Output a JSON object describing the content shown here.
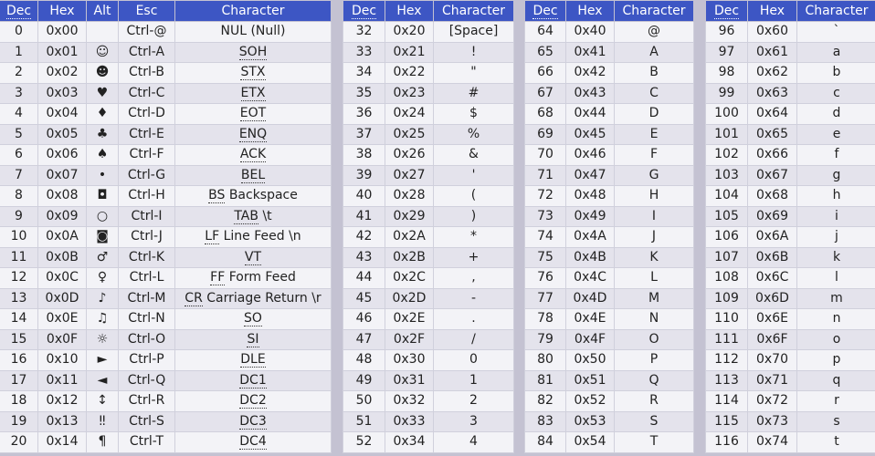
{
  "headers": {
    "control": [
      "Dec",
      "Hex",
      "Alt",
      "Esc",
      "Character"
    ],
    "printable": [
      "Dec",
      "Hex",
      "Character"
    ]
  },
  "control_rows": [
    {
      "dec": "0",
      "hex": "0x00",
      "alt": "",
      "esc": "Ctrl-@",
      "abbr": "",
      "rest": "NUL (Null)"
    },
    {
      "dec": "1",
      "hex": "0x01",
      "alt": "☺",
      "esc": "Ctrl-A",
      "abbr": "SOH",
      "rest": ""
    },
    {
      "dec": "2",
      "hex": "0x02",
      "alt": "☻",
      "esc": "Ctrl-B",
      "abbr": "STX",
      "rest": ""
    },
    {
      "dec": "3",
      "hex": "0x03",
      "alt": "♥",
      "esc": "Ctrl-C",
      "abbr": "ETX",
      "rest": ""
    },
    {
      "dec": "4",
      "hex": "0x04",
      "alt": "♦",
      "esc": "Ctrl-D",
      "abbr": "EOT",
      "rest": ""
    },
    {
      "dec": "5",
      "hex": "0x05",
      "alt": "♣",
      "esc": "Ctrl-E",
      "abbr": "ENQ",
      "rest": ""
    },
    {
      "dec": "6",
      "hex": "0x06",
      "alt": "♠",
      "esc": "Ctrl-F",
      "abbr": "ACK",
      "rest": ""
    },
    {
      "dec": "7",
      "hex": "0x07",
      "alt": "•",
      "esc": "Ctrl-G",
      "abbr": "BEL",
      "rest": ""
    },
    {
      "dec": "8",
      "hex": "0x08",
      "alt": "◘",
      "esc": "Ctrl-H",
      "abbr": "BS",
      "rest": "Backspace"
    },
    {
      "dec": "9",
      "hex": "0x09",
      "alt": "○",
      "esc": "Ctrl-I",
      "abbr": "TAB",
      "rest": "\\t"
    },
    {
      "dec": "10",
      "hex": "0x0A",
      "alt": "◙",
      "esc": "Ctrl-J",
      "abbr": "LF",
      "rest": "Line Feed \\n"
    },
    {
      "dec": "11",
      "hex": "0x0B",
      "alt": "♂",
      "esc": "Ctrl-K",
      "abbr": "VT",
      "rest": ""
    },
    {
      "dec": "12",
      "hex": "0x0C",
      "alt": "♀",
      "esc": "Ctrl-L",
      "abbr": "FF",
      "rest": "Form Feed"
    },
    {
      "dec": "13",
      "hex": "0x0D",
      "alt": "♪",
      "esc": "Ctrl-M",
      "abbr": "CR",
      "rest": "Carriage Return \\r"
    },
    {
      "dec": "14",
      "hex": "0x0E",
      "alt": "♫",
      "esc": "Ctrl-N",
      "abbr": "SO",
      "rest": ""
    },
    {
      "dec": "15",
      "hex": "0x0F",
      "alt": "☼",
      "esc": "Ctrl-O",
      "abbr": "SI",
      "rest": ""
    },
    {
      "dec": "16",
      "hex": "0x10",
      "alt": "►",
      "esc": "Ctrl-P",
      "abbr": "DLE",
      "rest": ""
    },
    {
      "dec": "17",
      "hex": "0x11",
      "alt": "◄",
      "esc": "Ctrl-Q",
      "abbr": "DC1",
      "rest": ""
    },
    {
      "dec": "18",
      "hex": "0x12",
      "alt": "↕",
      "esc": "Ctrl-R",
      "abbr": "DC2",
      "rest": ""
    },
    {
      "dec": "19",
      "hex": "0x13",
      "alt": "‼",
      "esc": "Ctrl-S",
      "abbr": "DC3",
      "rest": ""
    },
    {
      "dec": "20",
      "hex": "0x14",
      "alt": "¶",
      "esc": "Ctrl-T",
      "abbr": "DC4",
      "rest": ""
    }
  ],
  "printable_columns": [
    [
      {
        "dec": "32",
        "hex": "0x20",
        "char": "[Space]"
      },
      {
        "dec": "33",
        "hex": "0x21",
        "char": "!"
      },
      {
        "dec": "34",
        "hex": "0x22",
        "char": "\""
      },
      {
        "dec": "35",
        "hex": "0x23",
        "char": "#"
      },
      {
        "dec": "36",
        "hex": "0x24",
        "char": "$"
      },
      {
        "dec": "37",
        "hex": "0x25",
        "char": "%"
      },
      {
        "dec": "38",
        "hex": "0x26",
        "char": "&"
      },
      {
        "dec": "39",
        "hex": "0x27",
        "char": "'"
      },
      {
        "dec": "40",
        "hex": "0x28",
        "char": "("
      },
      {
        "dec": "41",
        "hex": "0x29",
        "char": ")"
      },
      {
        "dec": "42",
        "hex": "0x2A",
        "char": "*"
      },
      {
        "dec": "43",
        "hex": "0x2B",
        "char": "+"
      },
      {
        "dec": "44",
        "hex": "0x2C",
        "char": ","
      },
      {
        "dec": "45",
        "hex": "0x2D",
        "char": "-"
      },
      {
        "dec": "46",
        "hex": "0x2E",
        "char": "."
      },
      {
        "dec": "47",
        "hex": "0x2F",
        "char": "/"
      },
      {
        "dec": "48",
        "hex": "0x30",
        "char": "0"
      },
      {
        "dec": "49",
        "hex": "0x31",
        "char": "1"
      },
      {
        "dec": "50",
        "hex": "0x32",
        "char": "2"
      },
      {
        "dec": "51",
        "hex": "0x33",
        "char": "3"
      },
      {
        "dec": "52",
        "hex": "0x34",
        "char": "4"
      }
    ],
    [
      {
        "dec": "64",
        "hex": "0x40",
        "char": "@"
      },
      {
        "dec": "65",
        "hex": "0x41",
        "char": "A"
      },
      {
        "dec": "66",
        "hex": "0x42",
        "char": "B"
      },
      {
        "dec": "67",
        "hex": "0x43",
        "char": "C"
      },
      {
        "dec": "68",
        "hex": "0x44",
        "char": "D"
      },
      {
        "dec": "69",
        "hex": "0x45",
        "char": "E"
      },
      {
        "dec": "70",
        "hex": "0x46",
        "char": "F"
      },
      {
        "dec": "71",
        "hex": "0x47",
        "char": "G"
      },
      {
        "dec": "72",
        "hex": "0x48",
        "char": "H"
      },
      {
        "dec": "73",
        "hex": "0x49",
        "char": "I"
      },
      {
        "dec": "74",
        "hex": "0x4A",
        "char": "J"
      },
      {
        "dec": "75",
        "hex": "0x4B",
        "char": "K"
      },
      {
        "dec": "76",
        "hex": "0x4C",
        "char": "L"
      },
      {
        "dec": "77",
        "hex": "0x4D",
        "char": "M"
      },
      {
        "dec": "78",
        "hex": "0x4E",
        "char": "N"
      },
      {
        "dec": "79",
        "hex": "0x4F",
        "char": "O"
      },
      {
        "dec": "80",
        "hex": "0x50",
        "char": "P"
      },
      {
        "dec": "81",
        "hex": "0x51",
        "char": "Q"
      },
      {
        "dec": "82",
        "hex": "0x52",
        "char": "R"
      },
      {
        "dec": "83",
        "hex": "0x53",
        "char": "S"
      },
      {
        "dec": "84",
        "hex": "0x54",
        "char": "T"
      }
    ],
    [
      {
        "dec": "96",
        "hex": "0x60",
        "char": "`"
      },
      {
        "dec": "97",
        "hex": "0x61",
        "char": "a"
      },
      {
        "dec": "98",
        "hex": "0x62",
        "char": "b"
      },
      {
        "dec": "99",
        "hex": "0x63",
        "char": "c"
      },
      {
        "dec": "100",
        "hex": "0x64",
        "char": "d"
      },
      {
        "dec": "101",
        "hex": "0x65",
        "char": "e"
      },
      {
        "dec": "102",
        "hex": "0x66",
        "char": "f"
      },
      {
        "dec": "103",
        "hex": "0x67",
        "char": "g"
      },
      {
        "dec": "104",
        "hex": "0x68",
        "char": "h"
      },
      {
        "dec": "105",
        "hex": "0x69",
        "char": "i"
      },
      {
        "dec": "106",
        "hex": "0x6A",
        "char": "j"
      },
      {
        "dec": "107",
        "hex": "0x6B",
        "char": "k"
      },
      {
        "dec": "108",
        "hex": "0x6C",
        "char": "l"
      },
      {
        "dec": "109",
        "hex": "0x6D",
        "char": "m"
      },
      {
        "dec": "110",
        "hex": "0x6E",
        "char": "n"
      },
      {
        "dec": "111",
        "hex": "0x6F",
        "char": "o"
      },
      {
        "dec": "112",
        "hex": "0x70",
        "char": "p"
      },
      {
        "dec": "113",
        "hex": "0x71",
        "char": "q"
      },
      {
        "dec": "114",
        "hex": "0x72",
        "char": "r"
      },
      {
        "dec": "115",
        "hex": "0x73",
        "char": "s"
      },
      {
        "dec": "116",
        "hex": "0x74",
        "char": "t"
      }
    ]
  ],
  "colors": {
    "header_bg": "#3d56c4",
    "row_odd": "#f3f3f7",
    "row_even": "#e4e3ec",
    "page_bg": "#c4c2d2"
  }
}
